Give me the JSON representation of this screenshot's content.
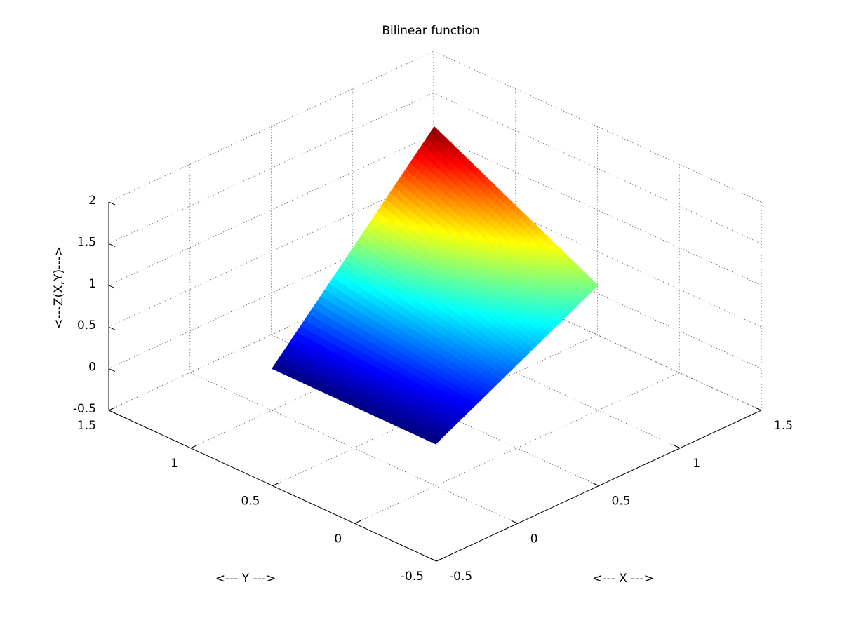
{
  "chart_data": {
    "type": "surface",
    "title": "Bilinear function",
    "xlabel": "<--- X --->",
    "ylabel": "<--- Y --->",
    "zlabel": "<---Z(X,Y)--->",
    "x": [
      0,
      0.25,
      0.5,
      0.75,
      1
    ],
    "y": [
      0,
      0.25,
      0.5,
      0.75,
      1
    ],
    "z": [
      [
        0,
        0.25,
        0.5,
        0.75,
        1
      ],
      [
        0,
        0.3125,
        0.625,
        0.9375,
        1.25
      ],
      [
        0,
        0.375,
        0.75,
        1.125,
        1.5
      ],
      [
        0,
        0.4375,
        0.875,
        1.3125,
        1.75
      ],
      [
        0,
        0.5,
        1,
        1.5,
        2
      ]
    ],
    "xlim": [
      -0.5,
      1.5
    ],
    "ylim": [
      -0.5,
      1.5
    ],
    "zlim": [
      -0.5,
      2
    ],
    "xticks": [
      -0.5,
      0,
      0.5,
      1,
      1.5
    ],
    "yticks": [
      -0.5,
      0,
      0.5,
      1,
      1.5
    ],
    "zticks": [
      -0.5,
      0,
      0.5,
      1,
      1.5,
      2
    ],
    "grid": true,
    "colormap": "jet"
  }
}
